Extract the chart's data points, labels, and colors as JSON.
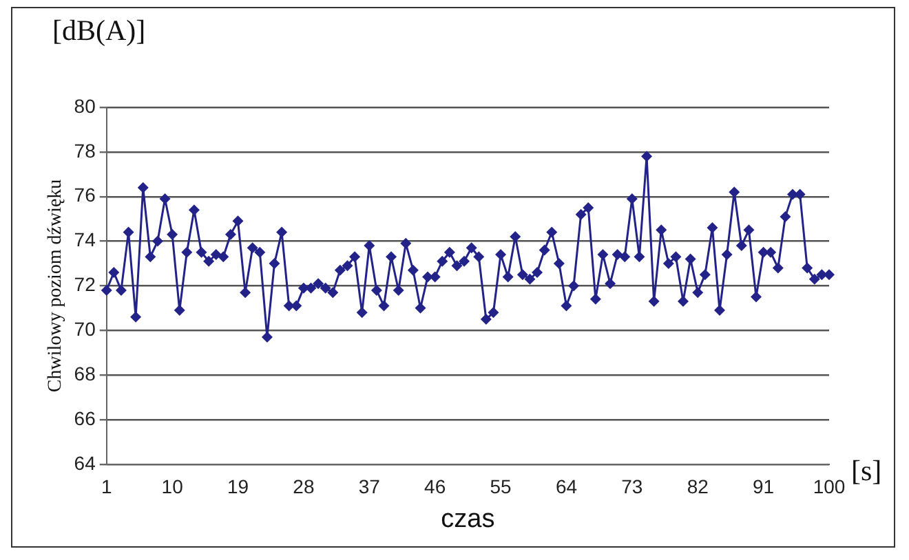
{
  "chart_data": {
    "type": "line",
    "xlabel": "czas",
    "ylabel": "Chwilowy poziom dźwięku",
    "annotations": [
      "[dB(A)]",
      "[s]"
    ],
    "categories": [
      "1",
      null,
      null,
      null,
      null,
      null,
      null,
      null,
      null,
      "10",
      null,
      null,
      null,
      null,
      null,
      null,
      null,
      null,
      "19",
      null,
      null,
      null,
      null,
      null,
      null,
      null,
      null,
      "28",
      null,
      null,
      null,
      null,
      null,
      null,
      null,
      null,
      "37",
      null,
      null,
      null,
      null,
      null,
      null,
      null,
      null,
      "46",
      null,
      null,
      null,
      null,
      null,
      null,
      null,
      null,
      "55",
      null,
      null,
      null,
      null,
      null,
      null,
      null,
      null,
      "64",
      null,
      null,
      null,
      null,
      null,
      null,
      null,
      null,
      "73",
      null,
      null,
      null,
      null,
      null,
      null,
      null,
      null,
      "82",
      null,
      null,
      null,
      null,
      null,
      null,
      null,
      null,
      "91",
      null,
      null,
      null,
      null,
      null,
      null,
      null,
      null,
      "100"
    ],
    "series": [
      {
        "color": "#222288",
        "values": [
          71.8,
          72.6,
          71.8,
          74.4,
          70.6,
          76.4,
          73.3,
          74.0,
          75.9,
          74.3,
          70.9,
          73.5,
          75.4,
          73.5,
          73.1,
          73.4,
          73.3,
          74.3,
          74.9,
          71.7,
          73.7,
          73.5,
          69.7,
          73.0,
          74.4,
          71.1,
          71.1,
          71.9,
          71.9,
          72.1,
          71.9,
          71.7,
          72.7,
          72.9,
          73.3,
          70.8,
          73.8,
          71.8,
          71.1,
          73.3,
          71.8,
          73.9,
          72.7,
          71.0,
          72.4,
          72.4,
          73.1,
          73.5,
          72.9,
          73.1,
          73.7,
          73.3,
          70.5,
          70.8,
          73.4,
          72.4,
          74.2,
          72.5,
          72.3,
          72.6,
          73.6,
          74.4,
          73.0,
          71.1,
          72.0,
          75.2,
          75.5,
          71.4,
          73.4,
          72.1,
          73.4,
          73.3,
          75.9,
          73.3,
          77.8,
          71.3,
          74.5,
          73.0,
          73.3,
          71.3,
          73.2,
          71.7,
          72.5,
          74.6,
          70.9,
          73.4,
          76.2,
          73.8,
          74.5,
          71.5,
          73.5,
          73.5,
          72.8,
          75.1,
          76.1,
          76.1,
          72.8,
          72.3,
          72.5,
          72.5
        ]
      }
    ],
    "ylim": [
      64,
      80
    ],
    "yticks": [
      64,
      66,
      68,
      70,
      72,
      74,
      76,
      78,
      80
    ],
    "grid": "y",
    "legend": false,
    "marker": "diamond",
    "line_style": "solid"
  }
}
